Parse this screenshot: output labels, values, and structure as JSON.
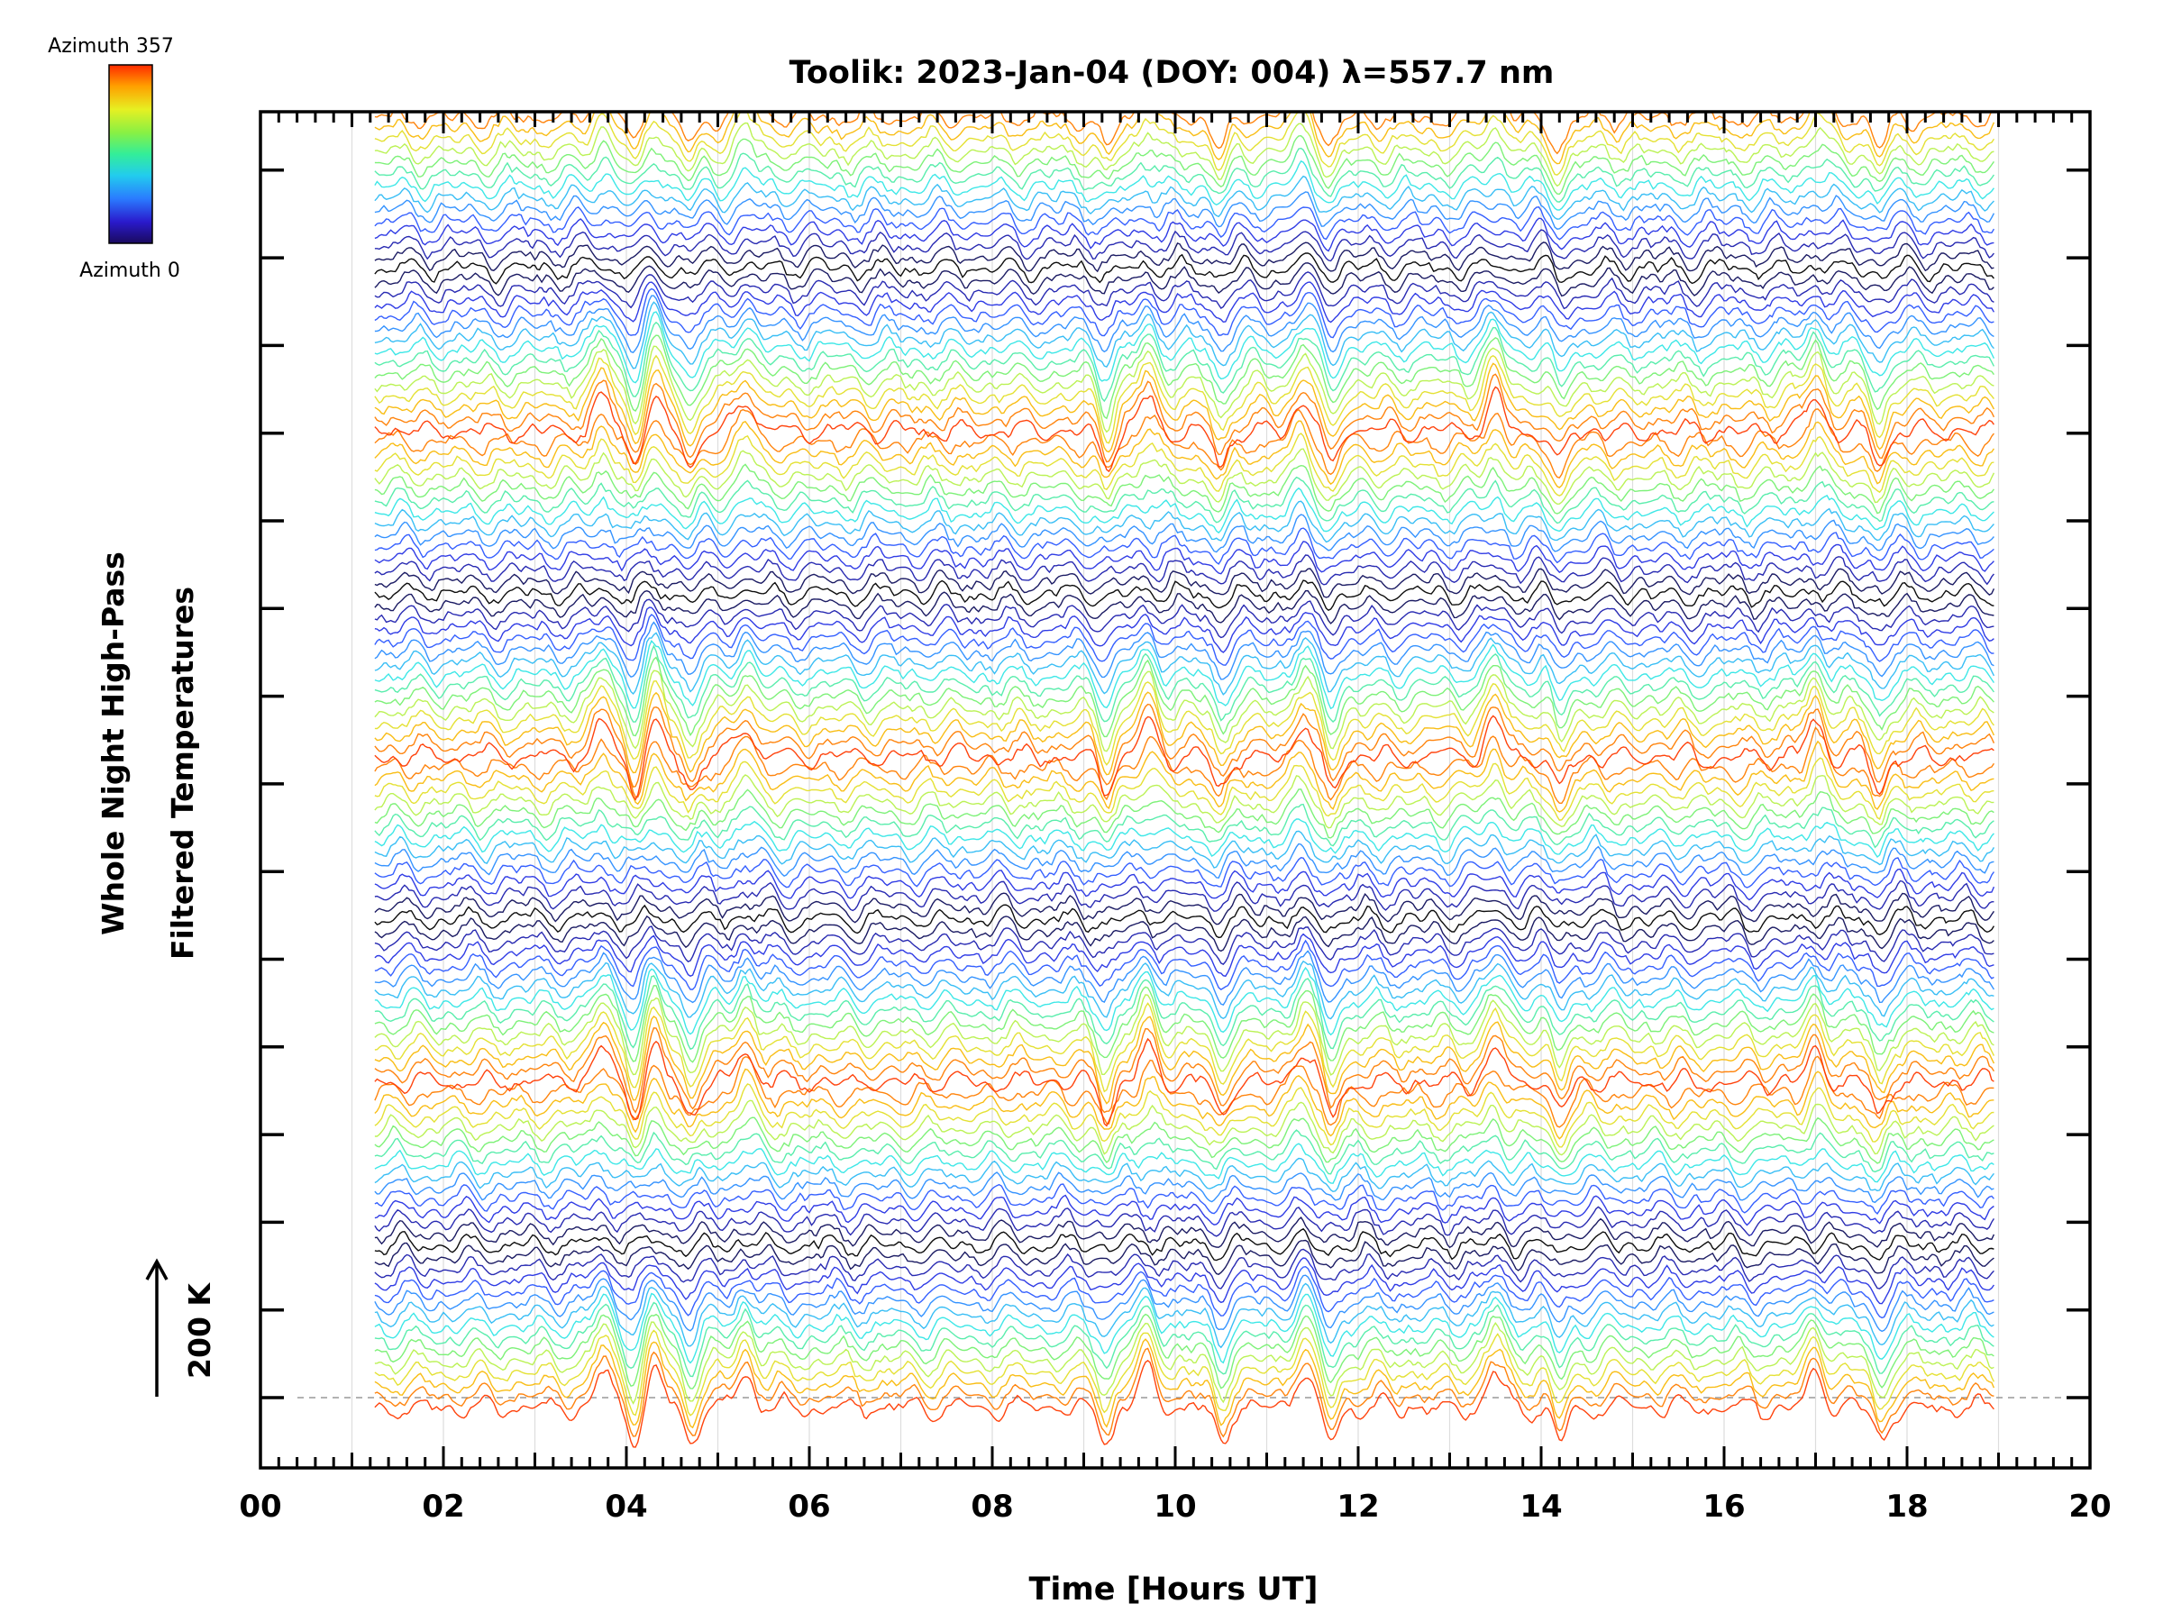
{
  "chart_data": {
    "type": "line",
    "title": "Toolik: 2023-Jan-04 (DOY: 004) λ=557.7 nm",
    "xlabel": "Time [Hours UT]",
    "ylabel_line1": "Whole Night High-Pass",
    "ylabel_line2": "Filtered Temperatures",
    "xlim": [
      0,
      20
    ],
    "x_ticks": [
      "00",
      "02",
      "04",
      "06",
      "08",
      "10",
      "12",
      "14",
      "16",
      "18",
      "20"
    ],
    "x_range_of_data": [
      1.25,
      18.95
    ],
    "scale_bar_label": "200 K",
    "colorbar": {
      "top_label": "Azimuth 357",
      "bottom_label": "Azimuth 0"
    },
    "series_count": 112,
    "grid": true,
    "colors": {
      "azimuth_scale": [
        "#000000",
        "#1a1aa0",
        "#2a3cff",
        "#2a9bff",
        "#33e6e6",
        "#66f07a",
        "#d8f23a",
        "#ffb000",
        "#ff3a00"
      ]
    },
    "common_features_hours": [
      {
        "time": 3.75,
        "kind": "peak"
      },
      {
        "time": 4.1,
        "kind": "trough"
      },
      {
        "time": 4.3,
        "kind": "peak"
      },
      {
        "time": 4.7,
        "kind": "trough"
      },
      {
        "time": 5.3,
        "kind": "peak"
      },
      {
        "time": 9.25,
        "kind": "trough"
      },
      {
        "time": 9.7,
        "kind": "peak"
      },
      {
        "time": 10.5,
        "kind": "trough"
      },
      {
        "time": 11.4,
        "kind": "peak"
      },
      {
        "time": 11.7,
        "kind": "trough"
      },
      {
        "time": 13.5,
        "kind": "peak"
      },
      {
        "time": 14.2,
        "kind": "trough"
      },
      {
        "time": 17.0,
        "kind": "peak"
      },
      {
        "time": 17.7,
        "kind": "trough"
      }
    ]
  }
}
